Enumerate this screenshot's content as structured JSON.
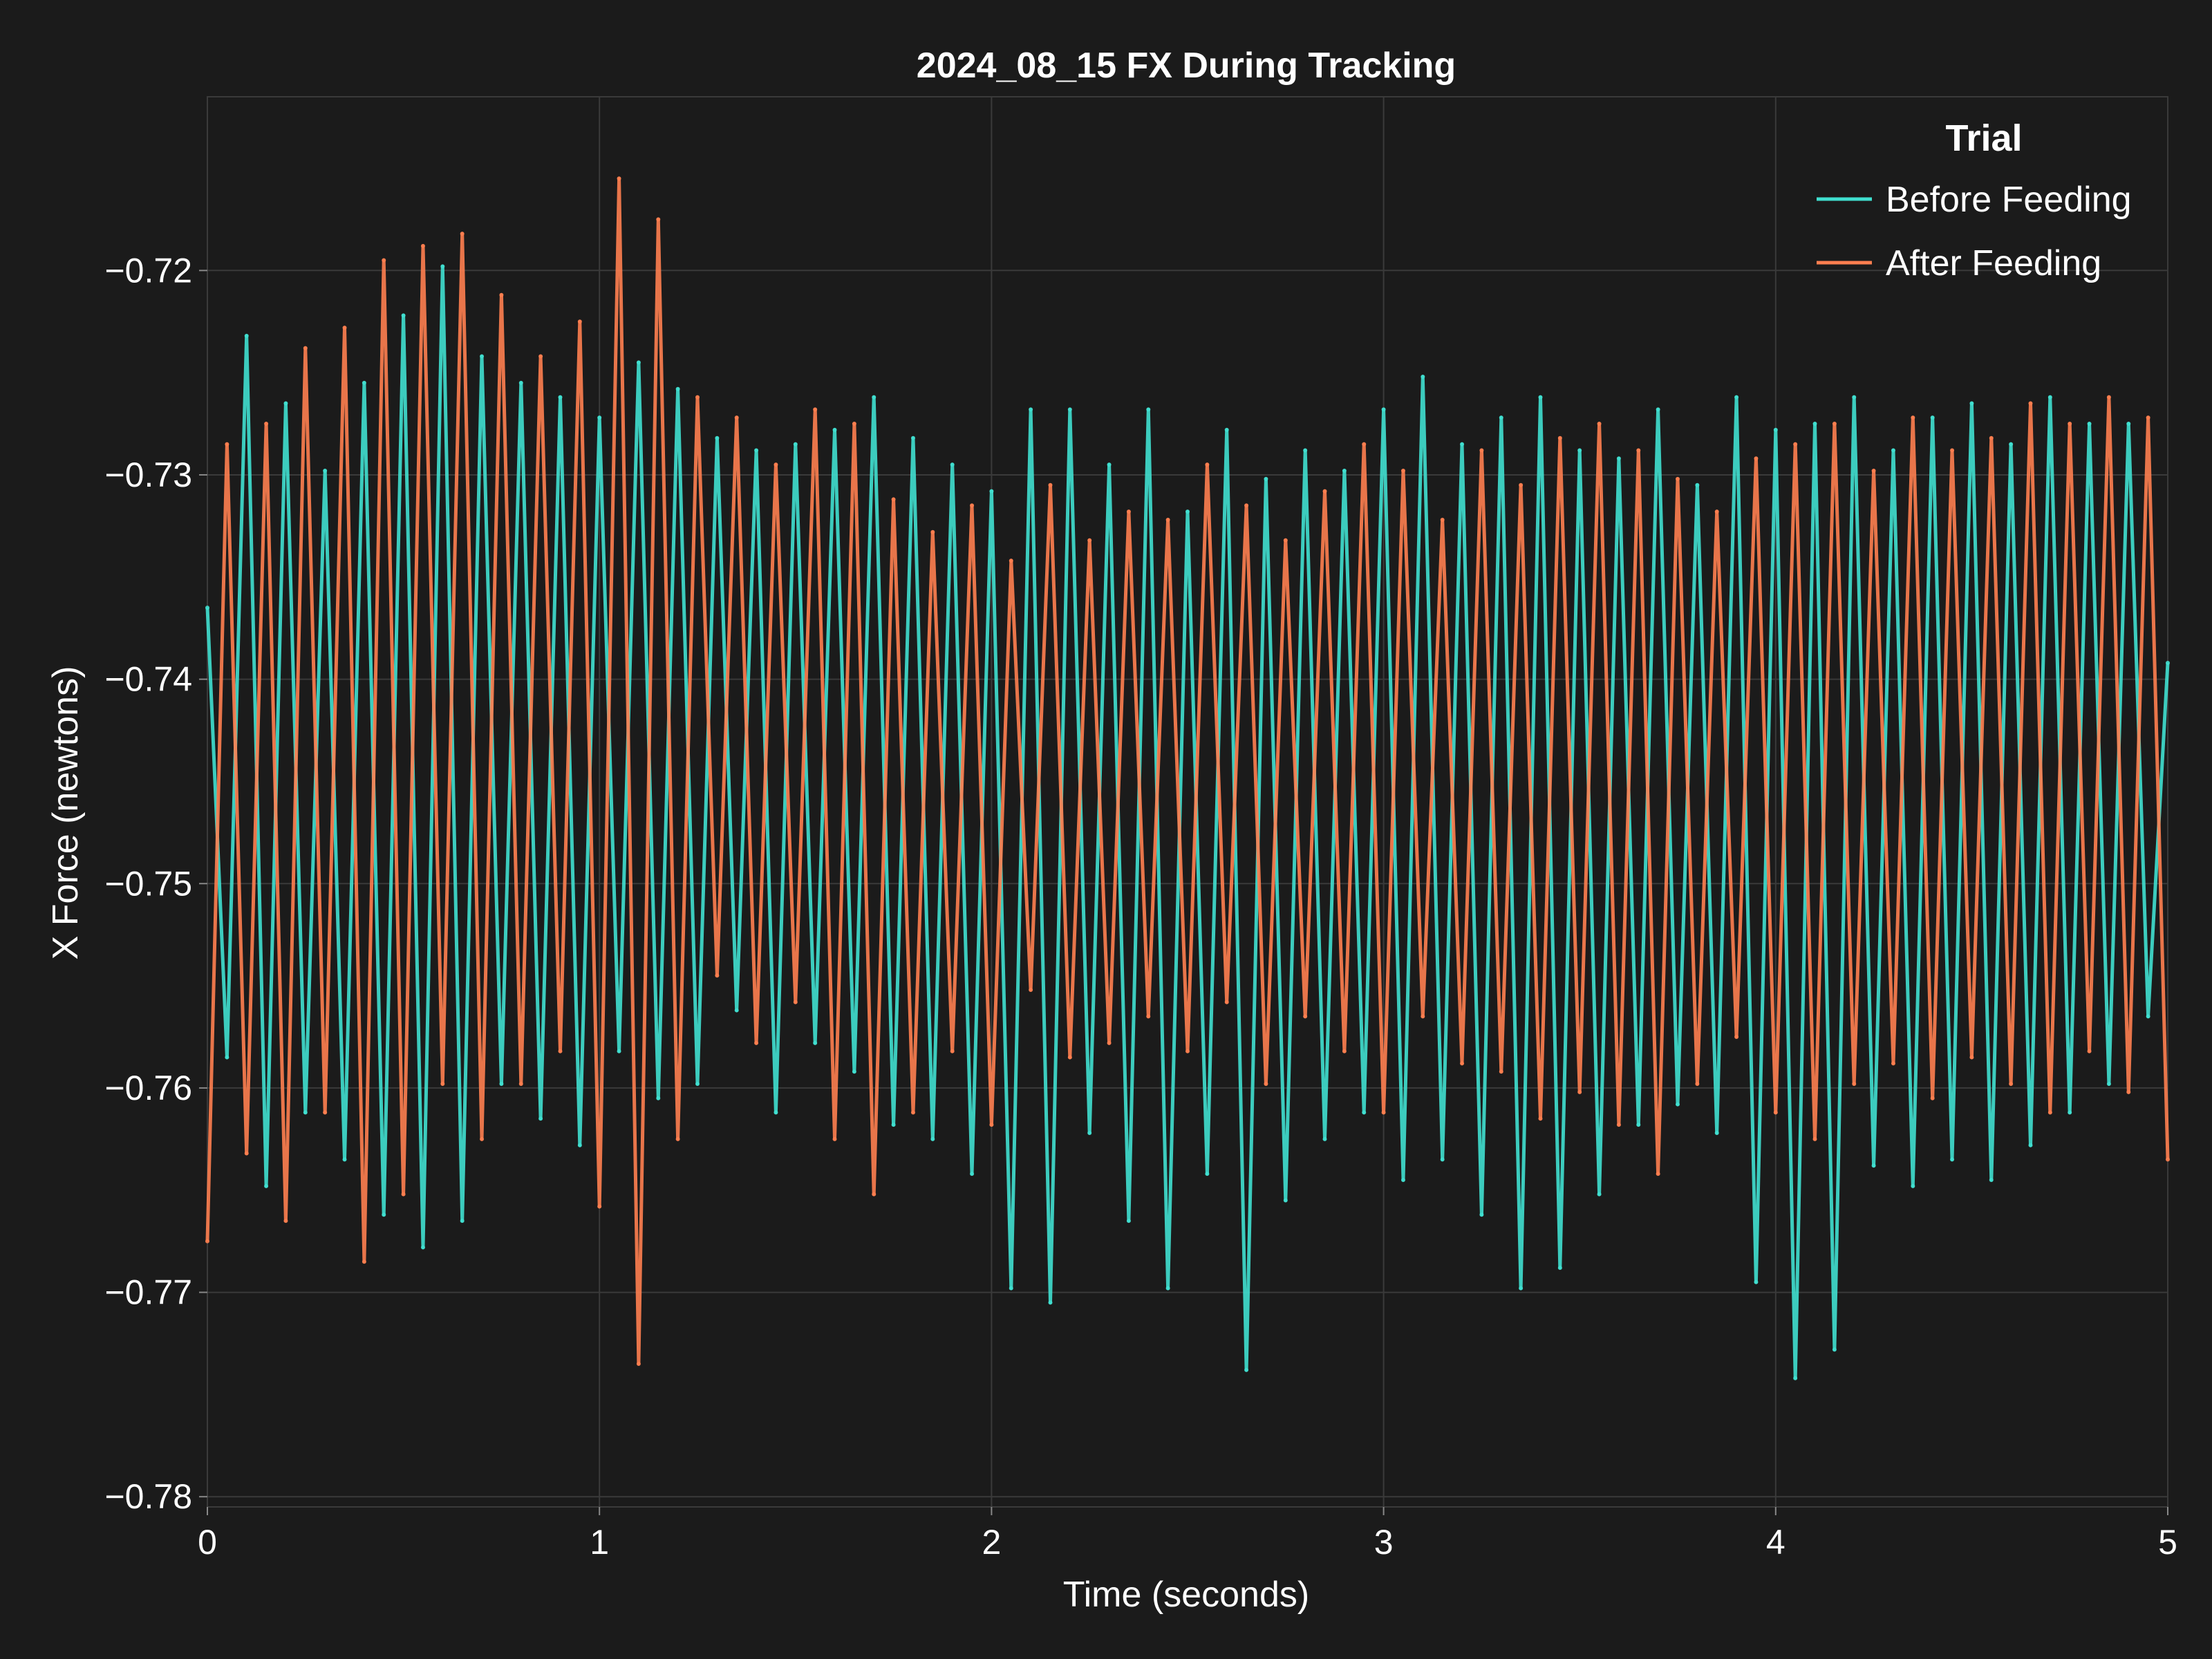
{
  "chart_data": {
    "type": "line",
    "title": "2024_08_15 FX During Tracking",
    "xlabel": "Time (seconds)",
    "ylabel": "X Force (newtons)",
    "xlim": [
      0,
      5
    ],
    "ylim": [
      -0.7805,
      -0.7115
    ],
    "x_ticks": [
      0,
      1,
      2,
      3,
      4,
      5
    ],
    "x_tick_labels": [
      "0",
      "1",
      "2",
      "3",
      "4",
      "5"
    ],
    "y_ticks": [
      -0.72,
      -0.73,
      -0.74,
      -0.75,
      -0.76,
      -0.77,
      -0.78
    ],
    "y_tick_labels": [
      "−0.72",
      "−0.73",
      "−0.74",
      "−0.75",
      "−0.76",
      "−0.77",
      "−0.78"
    ],
    "grid": true,
    "legend": {
      "title": "Trial",
      "position": "top-right"
    },
    "series": [
      {
        "name": "Before Feeding",
        "color": "#40e0d0",
        "x": [
          0,
          0.05,
          0.1,
          0.15,
          0.2,
          0.25,
          0.3,
          0.35,
          0.4,
          0.45,
          0.5,
          0.55,
          0.6,
          0.65,
          0.7,
          0.75,
          0.8,
          0.85,
          0.9,
          0.95,
          1.0,
          1.05,
          1.1,
          1.15,
          1.2,
          1.25,
          1.3,
          1.35,
          1.4,
          1.45,
          1.5,
          1.55,
          1.6,
          1.65,
          1.7,
          1.75,
          1.8,
          1.85,
          1.9,
          1.95,
          2.0,
          2.05,
          2.1,
          2.15,
          2.2,
          2.25,
          2.3,
          2.35,
          2.4,
          2.45,
          2.5,
          2.55,
          2.6,
          2.65,
          2.7,
          2.75,
          2.8,
          2.85,
          2.9,
          2.95,
          3.0,
          3.05,
          3.1,
          3.15,
          3.2,
          3.25,
          3.3,
          3.35,
          3.4,
          3.45,
          3.5,
          3.55,
          3.6,
          3.65,
          3.7,
          3.75,
          3.8,
          3.85,
          3.9,
          3.95,
          4.0,
          4.05,
          4.1,
          4.15,
          4.2,
          4.25,
          4.3,
          4.35,
          4.4,
          4.45,
          4.5,
          4.55,
          4.6,
          4.65,
          4.7,
          4.75,
          4.8,
          4.85,
          4.9,
          4.95,
          5.0
        ],
        "y": [
          -0.7365,
          -0.7585,
          -0.7232,
          -0.7648,
          -0.7265,
          -0.7612,
          -0.7298,
          -0.7635,
          -0.7255,
          -0.7662,
          -0.7222,
          -0.7678,
          -0.7198,
          -0.7665,
          -0.7242,
          -0.7598,
          -0.7255,
          -0.7615,
          -0.7262,
          -0.7628,
          -0.7272,
          -0.7582,
          -0.7245,
          -0.7605,
          -0.7258,
          -0.7598,
          -0.7282,
          -0.7562,
          -0.7288,
          -0.7612,
          -0.7285,
          -0.7578,
          -0.7278,
          -0.7592,
          -0.7262,
          -0.7618,
          -0.7282,
          -0.7625,
          -0.7295,
          -0.7642,
          -0.7308,
          -0.7698,
          -0.7268,
          -0.7705,
          -0.7268,
          -0.7622,
          -0.7295,
          -0.7665,
          -0.7268,
          -0.7698,
          -0.7318,
          -0.7642,
          -0.7278,
          -0.7738,
          -0.7302,
          -0.7655,
          -0.7288,
          -0.7625,
          -0.7298,
          -0.7612,
          -0.7268,
          -0.7645,
          -0.7252,
          -0.7635,
          -0.7285,
          -0.7662,
          -0.7272,
          -0.7698,
          -0.7262,
          -0.7688,
          -0.7288,
          -0.7652,
          -0.7292,
          -0.7618,
          -0.7268,
          -0.7608,
          -0.7305,
          -0.7622,
          -0.7262,
          -0.7695,
          -0.7278,
          -0.7742,
          -0.7275,
          -0.7728,
          -0.7262,
          -0.7638,
          -0.7288,
          -0.7648,
          -0.7272,
          -0.7635,
          -0.7265,
          -0.7645,
          -0.7285,
          -0.7628,
          -0.7262,
          -0.7612,
          -0.7275,
          -0.7598,
          -0.7275,
          -0.7565,
          -0.7392
        ]
      },
      {
        "name": "After Feeding",
        "color": "#ff7f50",
        "x": [
          0,
          0.05,
          0.1,
          0.15,
          0.2,
          0.25,
          0.3,
          0.35,
          0.4,
          0.45,
          0.5,
          0.55,
          0.6,
          0.65,
          0.7,
          0.75,
          0.8,
          0.85,
          0.9,
          0.95,
          1.0,
          1.05,
          1.1,
          1.15,
          1.2,
          1.25,
          1.3,
          1.35,
          1.4,
          1.45,
          1.5,
          1.55,
          1.6,
          1.65,
          1.7,
          1.75,
          1.8,
          1.85,
          1.9,
          1.95,
          2.0,
          2.05,
          2.1,
          2.15,
          2.2,
          2.25,
          2.3,
          2.35,
          2.4,
          2.45,
          2.5,
          2.55,
          2.6,
          2.65,
          2.7,
          2.75,
          2.8,
          2.85,
          2.9,
          2.95,
          3.0,
          3.05,
          3.1,
          3.15,
          3.2,
          3.25,
          3.3,
          3.35,
          3.4,
          3.45,
          3.5,
          3.55,
          3.6,
          3.65,
          3.7,
          3.75,
          3.8,
          3.85,
          3.9,
          3.95,
          4.0,
          4.05,
          4.1,
          4.15,
          4.2,
          4.25,
          4.3,
          4.35,
          4.4,
          4.45,
          4.5,
          4.55,
          4.6,
          4.65,
          4.7,
          4.75,
          4.8,
          4.85,
          4.9,
          4.95,
          5.0
        ],
        "y": [
          -0.7675,
          -0.7285,
          -0.7632,
          -0.7275,
          -0.7665,
          -0.7238,
          -0.7612,
          -0.7228,
          -0.7685,
          -0.7195,
          -0.7652,
          -0.7188,
          -0.7598,
          -0.7182,
          -0.7625,
          -0.7212,
          -0.7598,
          -0.7242,
          -0.7582,
          -0.7225,
          -0.7658,
          -0.7155,
          -0.7735,
          -0.7175,
          -0.7625,
          -0.7262,
          -0.7545,
          -0.7272,
          -0.7578,
          -0.7295,
          -0.7558,
          -0.7268,
          -0.7625,
          -0.7275,
          -0.7652,
          -0.7312,
          -0.7612,
          -0.7328,
          -0.7582,
          -0.7315,
          -0.7618,
          -0.7342,
          -0.7552,
          -0.7305,
          -0.7585,
          -0.7332,
          -0.7578,
          -0.7318,
          -0.7565,
          -0.7322,
          -0.7582,
          -0.7295,
          -0.7558,
          -0.7315,
          -0.7598,
          -0.7332,
          -0.7565,
          -0.7308,
          -0.7582,
          -0.7285,
          -0.7612,
          -0.7298,
          -0.7565,
          -0.7322,
          -0.7588,
          -0.7288,
          -0.7592,
          -0.7305,
          -0.7615,
          -0.7282,
          -0.7602,
          -0.7275,
          -0.7618,
          -0.7288,
          -0.7642,
          -0.7302,
          -0.7598,
          -0.7318,
          -0.7575,
          -0.7292,
          -0.7612,
          -0.7285,
          -0.7625,
          -0.7275,
          -0.7598,
          -0.7298,
          -0.7588,
          -0.7272,
          -0.7605,
          -0.7288,
          -0.7585,
          -0.7282,
          -0.7598,
          -0.7265,
          -0.7612,
          -0.7275,
          -0.7582,
          -0.7262,
          -0.7602,
          -0.7272,
          -0.7635
        ]
      }
    ]
  }
}
